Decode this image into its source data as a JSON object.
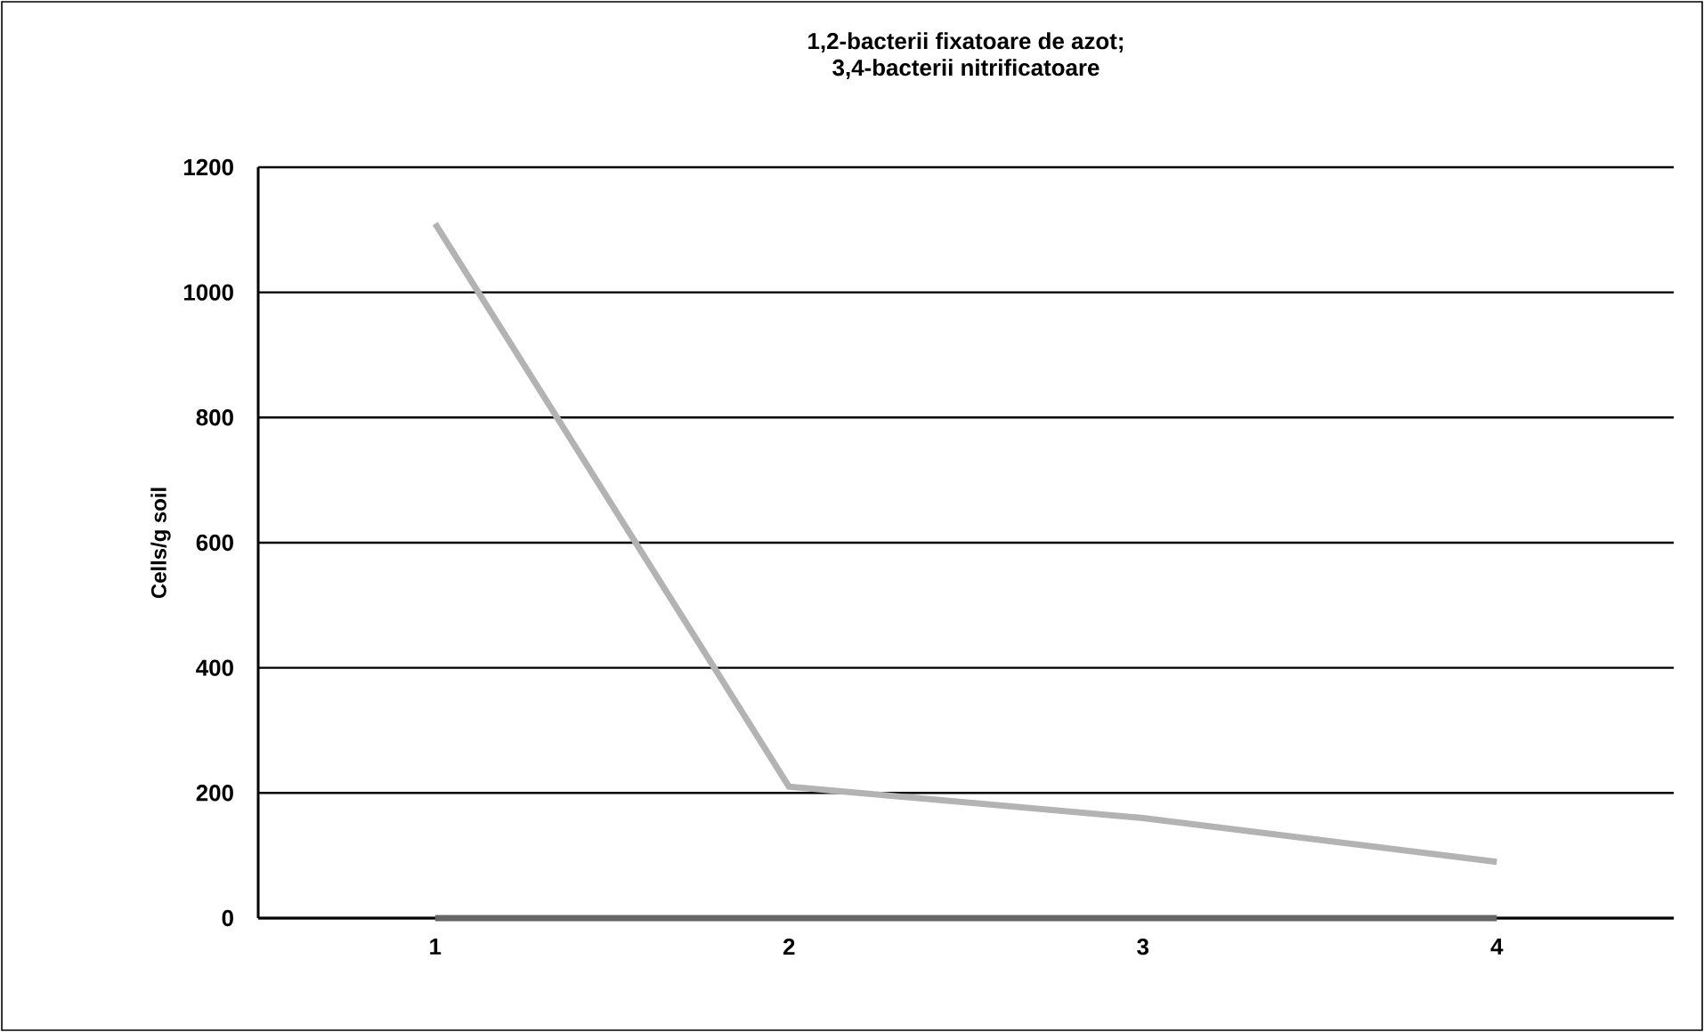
{
  "chart_data": {
    "type": "line",
    "title": "1,2-bacterii fixatoare de azot;",
    "subtitle": "3,4-bacterii nitrificatoare",
    "ylabel": "Cells/g soil",
    "categories": [
      "1",
      "2",
      "3",
      "4"
    ],
    "series": [
      {
        "color": "#b3b3b3",
        "values": [
          1110,
          210,
          160,
          90
        ]
      },
      {
        "color": "#666666",
        "values": [
          0,
          0,
          0,
          0
        ]
      }
    ],
    "ylim": [
      0,
      1200
    ],
    "yticks": [
      0,
      200,
      400,
      600,
      800,
      1000,
      1200
    ],
    "grid": "y",
    "marker": "none",
    "line_style": "solid"
  }
}
